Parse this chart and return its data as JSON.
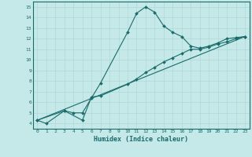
{
  "xlabel": "Humidex (Indice chaleur)",
  "xlim": [
    -0.5,
    23.5
  ],
  "ylim": [
    3.5,
    15.5
  ],
  "xticks": [
    0,
    1,
    2,
    3,
    4,
    5,
    6,
    7,
    8,
    9,
    10,
    11,
    12,
    13,
    14,
    15,
    16,
    17,
    18,
    19,
    20,
    21,
    22,
    23
  ],
  "yticks": [
    4,
    5,
    6,
    7,
    8,
    9,
    10,
    11,
    12,
    13,
    14,
    15
  ],
  "bg_color": "#c5e8e8",
  "line_color": "#1a6b6b",
  "grid_color": "#b0d8d8",
  "curve1_x": [
    0,
    1,
    3,
    4,
    5,
    6,
    7,
    10,
    11,
    12,
    13,
    14,
    15,
    16,
    17,
    18,
    19,
    20,
    21,
    22,
    23
  ],
  "curve1_y": [
    4.3,
    4.0,
    5.2,
    5.0,
    5.0,
    6.4,
    7.8,
    12.6,
    14.4,
    15.0,
    14.5,
    13.2,
    12.6,
    12.2,
    11.3,
    11.1,
    11.3,
    11.6,
    12.0,
    12.1,
    12.2
  ],
  "curve2_x": [
    0,
    3,
    5,
    6,
    7,
    10,
    11,
    12,
    13,
    14,
    15,
    16,
    17,
    18,
    19,
    20,
    21,
    22,
    23
  ],
  "curve2_y": [
    4.3,
    5.2,
    4.3,
    6.5,
    6.6,
    7.7,
    8.2,
    8.8,
    9.3,
    9.8,
    10.2,
    10.6,
    11.0,
    11.0,
    11.2,
    11.5,
    11.7,
    12.0,
    12.2
  ],
  "curve3_x": [
    0,
    23
  ],
  "curve3_y": [
    4.3,
    12.2
  ]
}
